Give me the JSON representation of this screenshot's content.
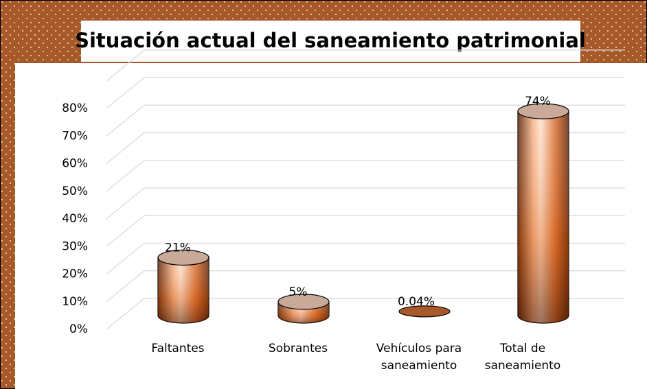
{
  "chart_data": {
    "type": "bar3d",
    "title": "Situación actual del saneamiento patrimonial",
    "categories": [
      "Faltantes",
      "Sobrantes",
      "Vehículos para saneamiento",
      "Total de saneamiento"
    ],
    "values": [
      21,
      5,
      0.04,
      74
    ],
    "value_labels": [
      "21%",
      "5%",
      "0.04%",
      "74%"
    ],
    "color": "#d9661e",
    "ylim": [
      0,
      80
    ],
    "yticks": [
      {
        "value": 0,
        "label": "0%"
      },
      {
        "value": 10,
        "label": "10%"
      },
      {
        "value": 20,
        "label": "20%"
      },
      {
        "value": 30,
        "label": "30%"
      },
      {
        "value": 40,
        "label": "40%"
      },
      {
        "value": 50,
        "label": "50%"
      },
      {
        "value": 60,
        "label": "60%"
      },
      {
        "value": 70,
        "label": "70%"
      },
      {
        "value": 80,
        "label": "80%"
      }
    ],
    "grid": true
  }
}
